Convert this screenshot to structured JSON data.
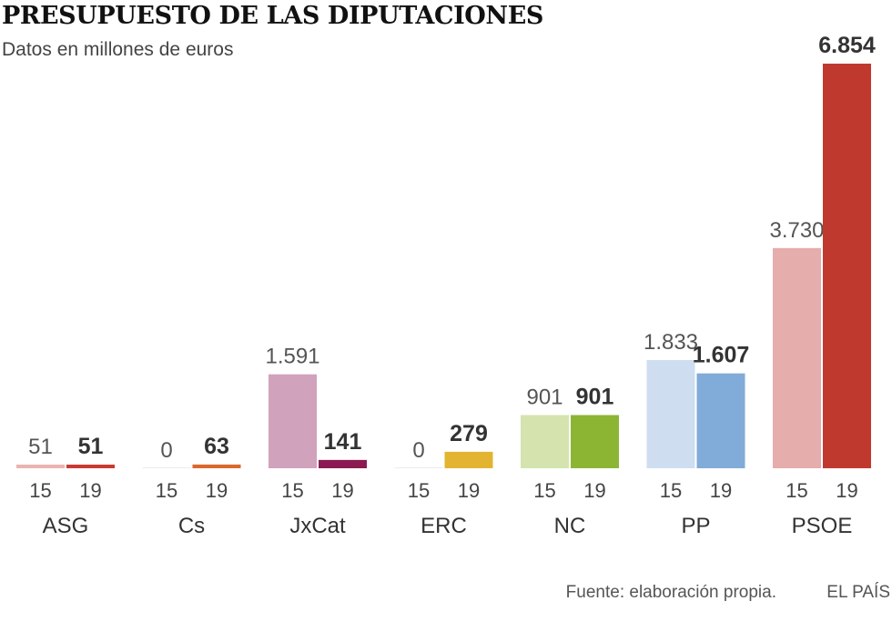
{
  "title": "PRESUPUESTO DE LAS DIPUTACIONES",
  "subtitle": "Datos en millones de euros",
  "footer": {
    "source": "Fuente: elaboración propia.",
    "credit": "EL PAÍS"
  },
  "chart_data": {
    "type": "bar",
    "title": "PRESUPUESTO DE LAS DIPUTACIONES",
    "ylabel": "Datos en millones de euros",
    "xlabel": "",
    "ylim": [
      0,
      6854
    ],
    "grid": false,
    "legend": "none",
    "categories": [
      "ASG",
      "Cs",
      "JxCat",
      "ERC",
      "NC",
      "PP",
      "PSOE"
    ],
    "series": [
      {
        "name": "15",
        "values": [
          51,
          0,
          1591,
          0,
          901,
          1833,
          3730
        ],
        "labels": [
          "51",
          "0",
          "1.591",
          "0",
          "901",
          "1.833",
          "3.730"
        ],
        "colors": [
          "#eab4b0",
          "#ececec",
          "#d0a2bb",
          "#ececec",
          "#d5e3ae",
          "#cfddf0",
          "#e5adab"
        ]
      },
      {
        "name": "19",
        "values": [
          51,
          63,
          141,
          279,
          901,
          1607,
          6854
        ],
        "labels": [
          "51",
          "63",
          "141",
          "279",
          "901",
          "1.607",
          "6.854"
        ],
        "colors": [
          "#c93a33",
          "#d9692d",
          "#8b1a52",
          "#e2b431",
          "#8db534",
          "#81abd8",
          "#c0392f"
        ]
      }
    ]
  }
}
